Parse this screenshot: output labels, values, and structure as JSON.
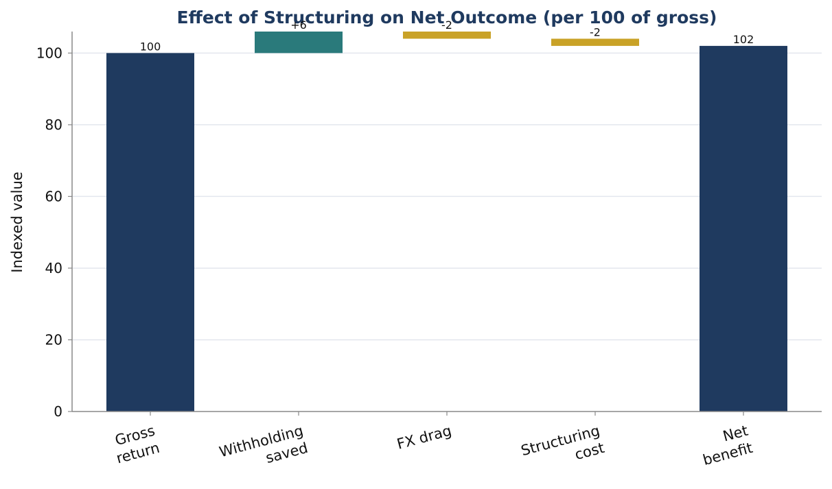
{
  "chart_data": {
    "type": "bar",
    "subtype": "waterfall",
    "title": "Effect of Structuring on Net Outcome (per 100 of gross)",
    "xlabel": "",
    "ylabel": "Indexed value",
    "ylim": [
      0,
      106
    ],
    "yticks": [
      0,
      20,
      40,
      60,
      80,
      100
    ],
    "grid": "horizontal",
    "categories": [
      [
        "Gross",
        "return"
      ],
      [
        "Withholding",
        "saved"
      ],
      [
        "FX drag"
      ],
      [
        "Structuring",
        "cost"
      ],
      [
        "Net",
        "benefit"
      ]
    ],
    "bars": [
      {
        "kind": "total",
        "start": 0,
        "end": 100,
        "value": 100,
        "label": "100"
      },
      {
        "kind": "increase",
        "start": 100,
        "end": 106,
        "value": 6,
        "label": "+6"
      },
      {
        "kind": "decrease",
        "start": 106,
        "end": 104,
        "value": -2,
        "label": "-2"
      },
      {
        "kind": "decrease",
        "start": 104,
        "end": 102,
        "value": -2,
        "label": "-2"
      },
      {
        "kind": "total",
        "start": 0,
        "end": 102,
        "value": 102,
        "label": "102"
      }
    ],
    "colors": {
      "total": "#1f3a5f",
      "increase": "#2a7a7b",
      "decrease": "#c9a227",
      "title": "#1f3a5f",
      "grid": "#e3e6ee",
      "axis": "#888888"
    }
  }
}
